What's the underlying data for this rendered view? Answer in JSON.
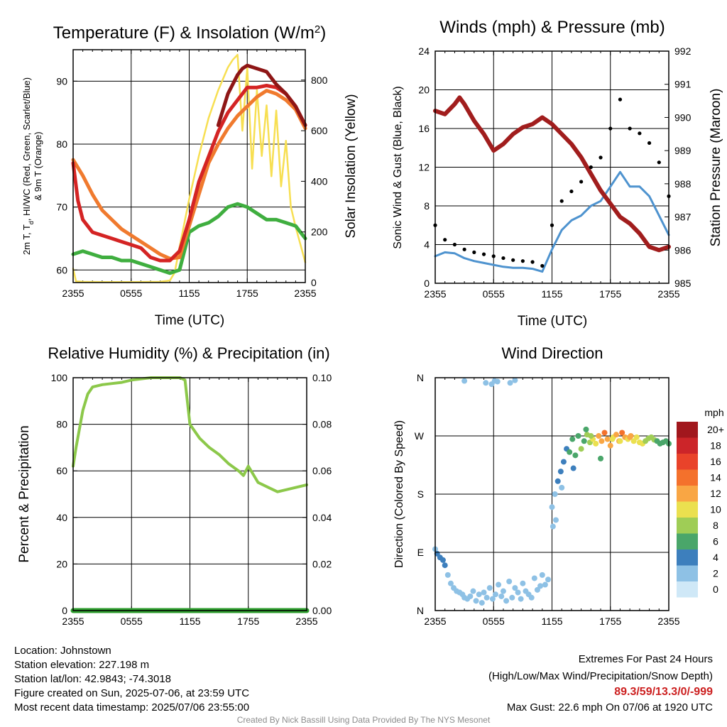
{
  "footer": {
    "location": "Location: Johnstown",
    "elevation": "Station elevation: 227.198 m",
    "latlon": "Station lat/lon: 42.9843; -74.3018",
    "created": "Figure created on Sun, 2025-07-06, at 23:59 UTC",
    "recent": "Most recent data timestamp: 2025/07/06 23:55:00",
    "extremes_title": "Extremes For Past 24 Hours",
    "extremes_legend": "(High/Low/Max Wind/Precipitation/Snow Depth)",
    "extremes_values": "89.3/59/13.3/0/-999",
    "max_gust": "Max Gust: 22.6 mph On 07/06 at 1920 UTC",
    "credit": "Created By Nick Bassill Using Data Provided By The NYS Mesonet"
  },
  "colors": {
    "temp_red": "#d42424",
    "dewpoint_green": "#3fae3f",
    "heat_index_darkred": "#8e1616",
    "temp9m_orange": "#f07a2e",
    "insolation_yellow": "#f7df52",
    "wind_blue": "#4e93cf",
    "gust_black": "#000000",
    "pressure_maroon": "#a11d1d",
    "rh_green": "#8cc84a",
    "precip_green": "#2e9e2e"
  },
  "chart_data": [
    {
      "id": "temp",
      "type": "line",
      "title": "Temperature (F) & Insolation (W/m",
      "title_sup": "2",
      "title_end": ")",
      "xlabel": "Time (UTC)",
      "ylabel_line1": "2m T, T",
      "ylabel_sub": "d",
      "ylabel_line1_end": ", HI/WC (Red, Green, Scarlet/Blue)",
      "ylabel_line2": "& 9m T (Orange)",
      "y2label": "Solar Insolation (Yellow)",
      "x_ticks": [
        "2355",
        "0555",
        "1155",
        "1755",
        "2355"
      ],
      "xlim_hours": [
        0,
        24
      ],
      "ylim": [
        58,
        95
      ],
      "y_ticks": [
        60,
        70,
        80,
        90
      ],
      "y2lim": [
        0,
        920
      ],
      "y2_ticks": [
        0,
        200,
        400,
        600,
        800
      ],
      "series": [
        {
          "key": "heat_index",
          "color": "#8e1616",
          "axis": "left",
          "x": [
            15,
            16,
            17,
            17.5,
            18,
            19,
            20,
            21,
            22,
            23,
            24
          ],
          "y": [
            83,
            88,
            91,
            92,
            92.5,
            92,
            91.5,
            89.5,
            88,
            86,
            83
          ]
        },
        {
          "key": "t2m",
          "color": "#d42424",
          "axis": "left",
          "x": [
            0,
            0.5,
            1,
            2,
            3,
            4,
            5,
            6,
            7,
            8,
            9,
            10,
            11,
            12,
            13,
            14,
            15,
            16,
            17,
            18,
            19,
            20,
            21,
            22,
            23,
            24
          ],
          "y": [
            77,
            71,
            68,
            66,
            65.5,
            65,
            64.5,
            64,
            63.5,
            62,
            61.5,
            61.5,
            63,
            68,
            74,
            78,
            82,
            85,
            87,
            89,
            89,
            89.3,
            89,
            88,
            86,
            83
          ]
        },
        {
          "key": "t9m",
          "color": "#f07a2e",
          "axis": "left",
          "x": [
            0,
            1,
            2,
            3,
            4,
            5,
            6,
            7,
            8,
            9,
            10,
            11,
            12,
            13,
            14,
            15,
            16,
            17,
            18,
            19,
            20,
            21,
            22,
            23,
            24
          ],
          "y": [
            77.5,
            75,
            72,
            69.5,
            68,
            66.5,
            65.5,
            64.5,
            63.5,
            62.5,
            61.8,
            62,
            67,
            72,
            77,
            80,
            82.5,
            84.5,
            86,
            87.5,
            88.5,
            88,
            87,
            85.5,
            82.5
          ]
        },
        {
          "key": "dewpoint",
          "color": "#3fae3f",
          "axis": "left",
          "x": [
            0,
            1,
            2,
            3,
            4,
            5,
            6,
            7,
            8,
            9,
            10,
            11,
            12,
            13,
            14,
            15,
            16,
            17,
            18,
            19,
            20,
            21,
            22,
            23,
            24
          ],
          "y": [
            62.5,
            63,
            62.5,
            62,
            62,
            61.5,
            61.5,
            61,
            60.5,
            60,
            59.5,
            60,
            66,
            67,
            67.5,
            68.5,
            70,
            70.5,
            70,
            69,
            68,
            68,
            67.5,
            67,
            65
          ]
        },
        {
          "key": "insolation",
          "color": "#f7df52",
          "axis": "right",
          "x": [
            0,
            0.3,
            1,
            3,
            6,
            9,
            10,
            10.5,
            11,
            12,
            13,
            14,
            15,
            16,
            16.5,
            17,
            17.5,
            18,
            18.5,
            19,
            19.5,
            20,
            20.5,
            21,
            21.5,
            22,
            22.5,
            23,
            23.5,
            24
          ],
          "y": [
            55,
            5,
            3,
            2,
            2,
            3,
            8,
            40,
            140,
            330,
            500,
            650,
            760,
            850,
            880,
            900,
            600,
            850,
            450,
            760,
            500,
            700,
            420,
            680,
            380,
            560,
            300,
            220,
            150,
            80
          ]
        }
      ]
    },
    {
      "id": "wind",
      "type": "line",
      "title": "Winds (mph) & Pressure (mb)",
      "xlabel": "Time (UTC)",
      "ylabel": "Sonic Wind & Gust (Blue, Black)",
      "y2label": "Station Pressure (Maroon)",
      "x_ticks": [
        "2355",
        "0555",
        "1155",
        "1755",
        "2355"
      ],
      "xlim_hours": [
        0,
        24
      ],
      "ylim": [
        0,
        24
      ],
      "y_ticks": [
        0,
        4,
        8,
        12,
        16,
        20,
        24
      ],
      "y2lim": [
        985,
        992
      ],
      "y2_ticks": [
        985,
        986,
        987,
        988,
        989,
        990,
        991,
        992
      ],
      "series": [
        {
          "key": "sonic_wind",
          "color": "#4e93cf",
          "axis": "left",
          "x": [
            0,
            1,
            2,
            3,
            4,
            5,
            6,
            7,
            8,
            9,
            10,
            11,
            12,
            13,
            14,
            15,
            16,
            17,
            18,
            19,
            20,
            21,
            22,
            23,
            24
          ],
          "y": [
            2.8,
            3.2,
            3.1,
            2.6,
            2.3,
            2.1,
            1.9,
            1.7,
            1.6,
            1.6,
            1.5,
            1.2,
            3.5,
            5.5,
            6.5,
            7,
            8,
            8.5,
            10,
            11.5,
            10,
            10,
            9,
            7,
            5
          ]
        },
        {
          "key": "gust",
          "color": "#000000",
          "axis": "left",
          "x": [
            0,
            1,
            2,
            3,
            4,
            5,
            6,
            7,
            8,
            9,
            10,
            11,
            12,
            13,
            14,
            15,
            16,
            17,
            18,
            19,
            20,
            21,
            22,
            23,
            24
          ],
          "y": [
            6,
            4.5,
            4,
            3.5,
            3.2,
            3,
            2.8,
            2.6,
            2.4,
            2.3,
            2.2,
            1.8,
            6,
            8.5,
            9.5,
            10.5,
            12,
            13,
            16,
            19,
            16,
            15.5,
            14.5,
            12.5,
            9
          ]
        },
        {
          "key": "pressure",
          "color": "#a11d1d",
          "axis": "right",
          "x": [
            0,
            1,
            2,
            2.5,
            3,
            4,
            5,
            6,
            7,
            8,
            9,
            10,
            11,
            12,
            13,
            14,
            15,
            16,
            17,
            18,
            19,
            20,
            21,
            22,
            23,
            24
          ],
          "y": [
            990.2,
            990.1,
            990.4,
            990.6,
            990.4,
            989.9,
            989.5,
            989,
            989.2,
            989.5,
            989.7,
            989.8,
            990,
            989.8,
            989.5,
            989.2,
            988.8,
            988.3,
            987.8,
            987.4,
            987,
            986.8,
            986.5,
            986.1,
            986.0,
            986.1
          ]
        }
      ]
    },
    {
      "id": "rh",
      "type": "line",
      "title": "Relative Humidity (%) & Precipitation (in)",
      "ylabel": "Percent & Precipitation",
      "x_ticks": [
        "2355",
        "0555",
        "1155",
        "1755",
        "2355"
      ],
      "xlim_hours": [
        0,
        24
      ],
      "ylim": [
        0,
        100
      ],
      "y_ticks": [
        0,
        20,
        40,
        60,
        80,
        100
      ],
      "y2lim": [
        0,
        0.1
      ],
      "y2_ticks": [
        "0.00",
        "0.02",
        "0.04",
        "0.06",
        "0.08",
        "0.10"
      ],
      "series": [
        {
          "key": "rh",
          "color": "#8cc84a",
          "axis": "left",
          "x": [
            0,
            0.3,
            1,
            1.5,
            2,
            3,
            4,
            5,
            6,
            7,
            8,
            9,
            10,
            11,
            11.5,
            12,
            13,
            14,
            15,
            16,
            17,
            17.5,
            18,
            19,
            20,
            21,
            22,
            23,
            24
          ],
          "y": [
            62,
            70,
            86,
            93,
            96,
            97,
            97.5,
            98,
            99,
            99.5,
            100,
            100,
            100,
            100,
            99,
            80,
            74,
            70,
            67,
            63,
            60,
            58,
            62,
            55,
            53,
            51,
            52,
            53,
            54
          ]
        },
        {
          "key": "precip",
          "color": "#2e9e2e",
          "axis": "right",
          "x": [
            0,
            24
          ],
          "y": [
            0,
            0
          ]
        }
      ]
    },
    {
      "id": "dir",
      "type": "scatter",
      "title": "Wind Direction",
      "ylabel": "Direction (Colored By Speed)",
      "x_ticks": [
        "2355",
        "0555",
        "1155",
        "1755",
        "2355"
      ],
      "xlim_hours": [
        0,
        24
      ],
      "y_ticks": [
        "N",
        "E",
        "S",
        "W",
        "N"
      ],
      "ylim_deg": [
        0,
        360
      ],
      "colorbar_title": "mph",
      "colorbar_labels": [
        "20+",
        "18",
        "16",
        "14",
        "12",
        "10",
        "8",
        "6",
        "4",
        "2",
        "0"
      ],
      "colorbar_colors": [
        "#a1171d",
        "#cc2529",
        "#e9432a",
        "#f4712c",
        "#f9a644",
        "#ebe04f",
        "#9fcd56",
        "#4aa66a",
        "#3d7fbd",
        "#8ec1e5",
        "#cfe8f7"
      ],
      "points": {
        "x": [
          0,
          0.2,
          0.5,
          0.8,
          1,
          1.3,
          1.6,
          1.9,
          2.2,
          2.5,
          2.8,
          3,
          3.3,
          3.6,
          3.9,
          4.2,
          4.5,
          4.8,
          5,
          5.3,
          5.6,
          5.9,
          6.2,
          6.5,
          6.8,
          7,
          7.3,
          7.6,
          7.9,
          8.2,
          8.5,
          8.8,
          9,
          9.3,
          9.6,
          9.9,
          10.2,
          10.5,
          10.8,
          11,
          11.3,
          11.6,
          3,
          5.2,
          5.8,
          6.1,
          6.4,
          7.7,
          8.2,
          12,
          12.3,
          12.6,
          12.9,
          13.2,
          13.5,
          13.8,
          14.1,
          14.4,
          14.7,
          15,
          15.3,
          15.6,
          15.9,
          16.2,
          16.5,
          16.8,
          17.1,
          17.4,
          17.7,
          18,
          18.3,
          18.6,
          18.9,
          19.2,
          19.5,
          19.8,
          20.1,
          20.4,
          20.7,
          21,
          21.3,
          21.6,
          21.9,
          22.2,
          22.5,
          22.8,
          23.1,
          23.4,
          23.7,
          24,
          12.1,
          12.4,
          13,
          14.2,
          15.5,
          16,
          17,
          18.2,
          19,
          20
        ],
        "y": [
          95,
          88,
          82,
          78,
          70,
          55,
          42,
          35,
          30,
          28,
          25,
          20,
          18,
          22,
          30,
          15,
          25,
          12,
          28,
          20,
          35,
          18,
          25,
          40,
          22,
          30,
          15,
          45,
          20,
          35,
          28,
          18,
          42,
          30,
          25,
          20,
          50,
          32,
          38,
          55,
          40,
          48,
          355,
          352,
          350,
          355,
          354,
          352,
          356,
          160,
          180,
          200,
          215,
          230,
          250,
          245,
          265,
          240,
          270,
          250,
          262,
          272,
          260,
          265,
          258,
          270,
          262,
          275,
          265,
          255,
          268,
          272,
          262,
          275,
          268,
          265,
          270,
          262,
          268,
          260,
          258,
          262,
          266,
          268,
          264,
          262,
          258,
          260,
          262,
          258,
          130,
          140,
          190,
          220,
          280,
          270,
          235,
          265,
          262,
          268
        ],
        "speed": [
          2.5,
          3,
          3.5,
          3.5,
          3,
          2.5,
          2.5,
          2,
          2,
          2.5,
          2,
          2,
          2.5,
          2,
          2.5,
          2,
          2,
          2.5,
          2,
          2,
          2.5,
          2,
          2,
          2.5,
          2,
          1.5,
          1.5,
          2,
          1.5,
          2,
          1.5,
          1.5,
          2,
          1.5,
          1,
          1.5,
          1.5,
          1,
          1,
          1.5,
          1,
          1,
          2,
          2,
          1.5,
          2,
          2,
          1.5,
          2,
          2,
          2.5,
          3,
          3.5,
          4,
          4.5,
          5,
          6,
          5.5,
          6,
          7,
          6.5,
          7.5,
          8,
          9,
          10,
          11,
          12,
          13,
          12,
          11,
          10,
          11,
          12,
          13,
          11.5,
          10,
          11,
          10.5,
          10,
          9.5,
          9,
          8.5,
          8,
          7.5,
          7,
          6.5,
          6,
          5.5,
          5,
          5,
          2,
          2,
          2.5,
          3.5,
          6.5,
          7,
          5,
          9,
          10,
          11
        ]
      }
    }
  ]
}
